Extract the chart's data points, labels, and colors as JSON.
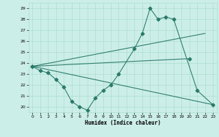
{
  "title": "",
  "xlabel": "Humidex (Indice chaleur)",
  "ylabel": "",
  "bg_color": "#cceee8",
  "grid_color": "#aaddcc",
  "line_color": "#2a7a6a",
  "xlim": [
    -0.5,
    23.5
  ],
  "ylim": [
    19.5,
    29.5
  ],
  "xticks": [
    0,
    1,
    2,
    3,
    4,
    5,
    6,
    7,
    8,
    9,
    10,
    11,
    12,
    13,
    14,
    15,
    16,
    17,
    18,
    19,
    20,
    21,
    22,
    23
  ],
  "yticks": [
    20,
    21,
    22,
    23,
    24,
    25,
    26,
    27,
    28,
    29
  ],
  "line1_x": [
    0,
    1,
    2,
    3,
    4,
    5,
    6,
    7,
    8,
    9,
    10,
    11,
    13,
    14,
    15,
    16,
    17,
    18,
    21,
    23
  ],
  "line1_y": [
    23.7,
    23.3,
    23.1,
    22.5,
    21.8,
    20.5,
    20.0,
    19.7,
    20.8,
    21.5,
    22.0,
    23.0,
    25.3,
    26.7,
    29.0,
    28.0,
    28.2,
    28.0,
    21.5,
    20.2
  ],
  "line2_x": [
    0,
    23
  ],
  "line2_y": [
    23.7,
    20.2
  ],
  "line3_x": [
    0,
    22
  ],
  "line3_y": [
    23.7,
    26.7
  ],
  "line4_x": [
    0,
    20
  ],
  "line4_y": [
    23.7,
    24.4
  ],
  "figsize": [
    3.2,
    2.0
  ],
  "dpi": 100
}
